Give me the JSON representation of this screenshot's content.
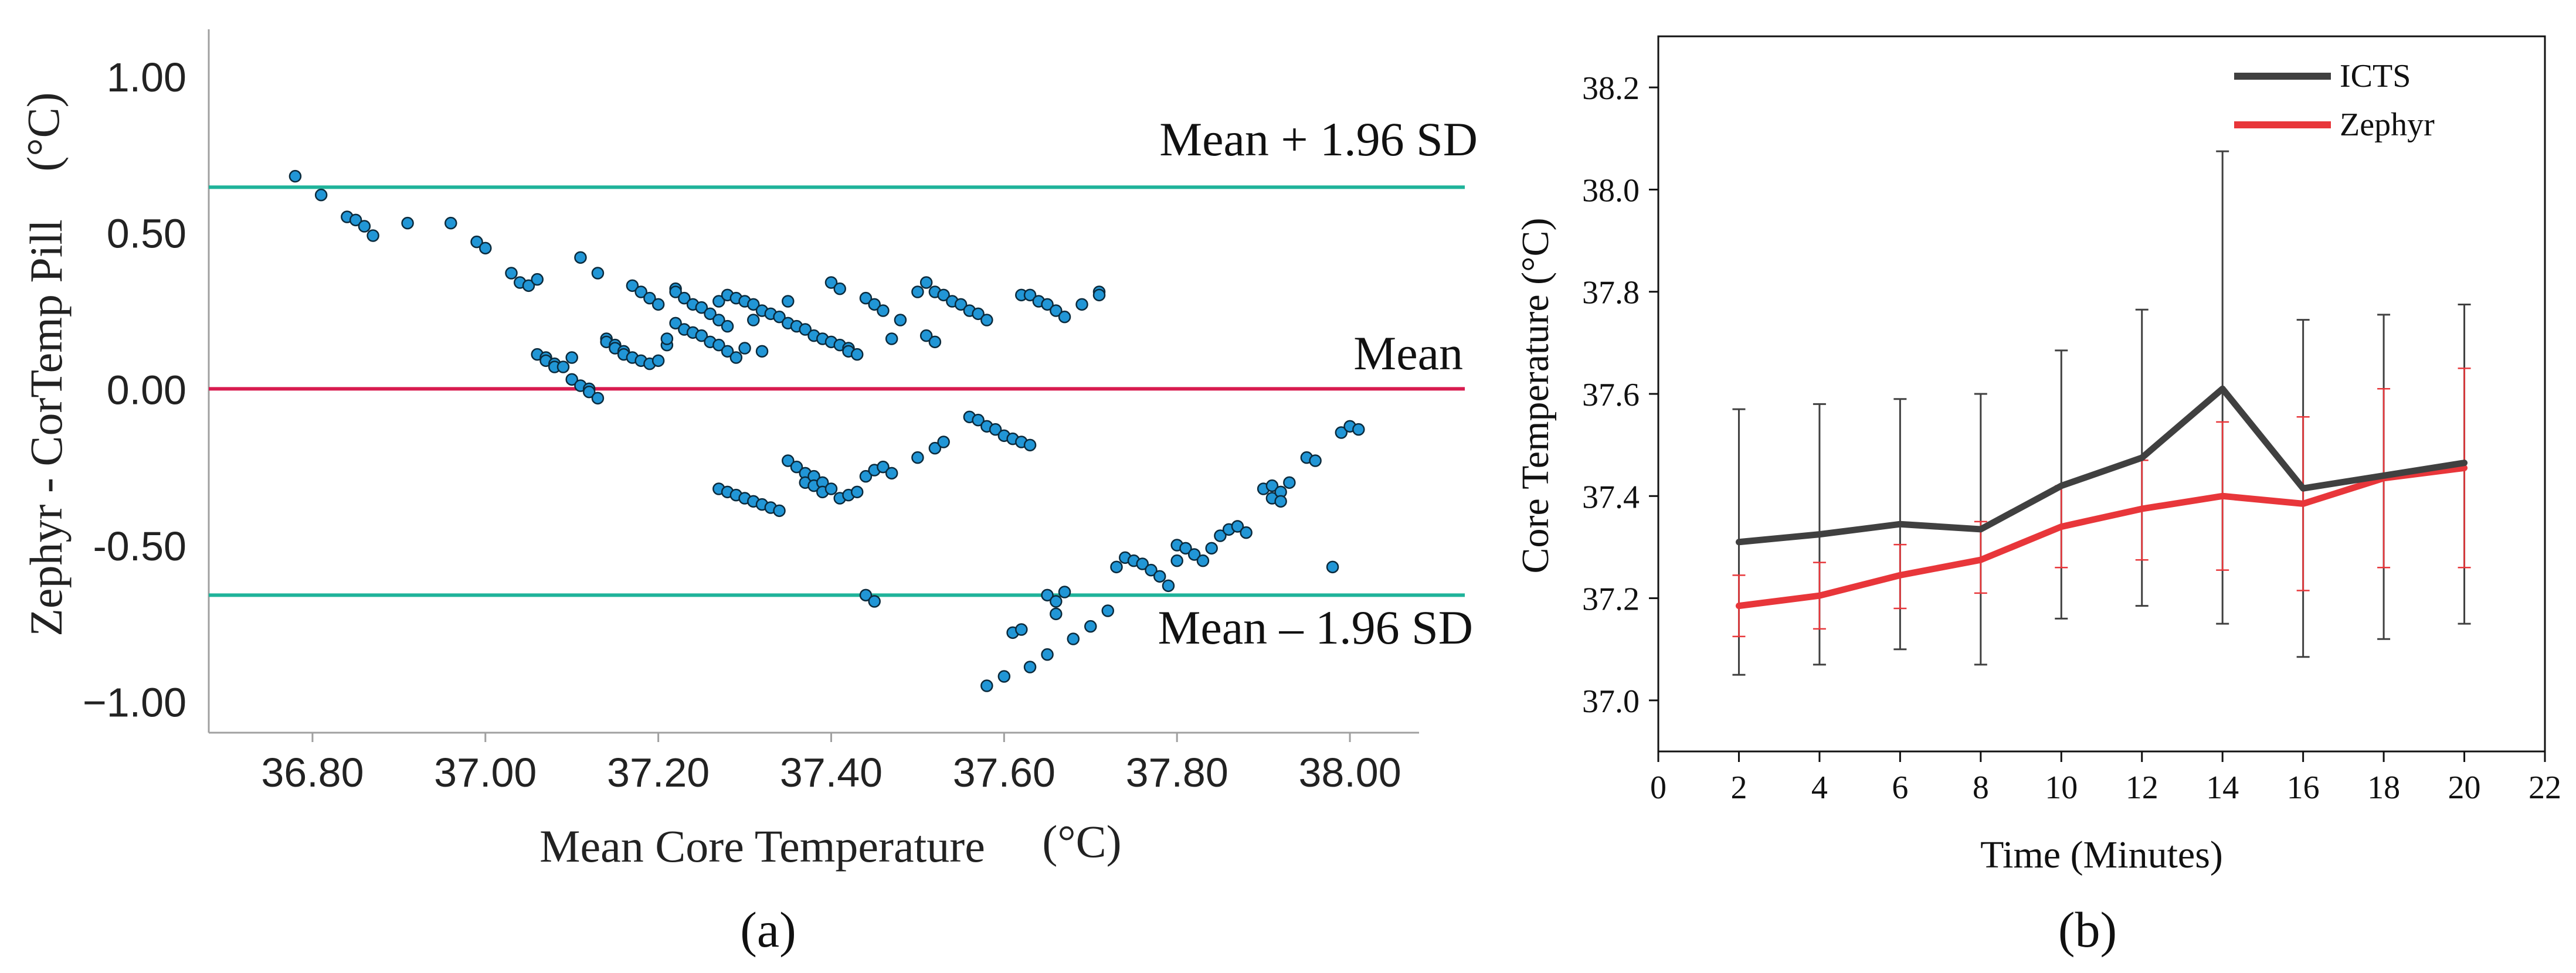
{
  "panel_labels": {
    "a": "(a)",
    "b": "(b)"
  },
  "chart_data": [
    {
      "type": "scatter",
      "title": "",
      "xlabel": "Mean Core Temperature",
      "xlabel_unit": "(°C)",
      "ylabel": "Zephyr - CorTemp Pill",
      "ylabel_unit": "(°C)",
      "xlim": [
        36.68,
        38.08
      ],
      "ylim": [
        -1.1,
        1.15
      ],
      "xticks": [
        36.8,
        37.0,
        37.2,
        37.4,
        37.6,
        37.8,
        38.0
      ],
      "xtick_labels": [
        "36.80",
        "37.00",
        "37.20",
        "37.40",
        "37.60",
        "37.80",
        "38.00"
      ],
      "yticks": [
        1.0,
        0.5,
        0.0,
        -0.5,
        -1.0
      ],
      "ytick_labels": [
        "1.00",
        "0.50",
        "0.00",
        "-0.50",
        "−1.00"
      ],
      "reference_lines": [
        {
          "name": "Mean + 1.96 SD",
          "value": 0.645,
          "color": "#1fb39a"
        },
        {
          "name": "Mean",
          "value": 0.0,
          "color": "#d81b4f"
        },
        {
          "name": "Mean – 1.96 SD",
          "value": -0.66,
          "color": "#1fb39a"
        }
      ],
      "marker_color": "#2196d6",
      "points": [
        [
          36.78,
          0.68
        ],
        [
          36.81,
          0.62
        ],
        [
          36.84,
          0.55
        ],
        [
          36.85,
          0.54
        ],
        [
          36.86,
          0.52
        ],
        [
          36.87,
          0.49
        ],
        [
          36.91,
          0.53
        ],
        [
          36.96,
          0.53
        ],
        [
          36.99,
          0.47
        ],
        [
          37.0,
          0.45
        ],
        [
          37.03,
          0.37
        ],
        [
          37.04,
          0.34
        ],
        [
          37.05,
          0.33
        ],
        [
          37.06,
          0.35
        ],
        [
          37.06,
          0.11
        ],
        [
          37.07,
          0.1
        ],
        [
          37.07,
          0.09
        ],
        [
          37.08,
          0.08
        ],
        [
          37.08,
          0.07
        ],
        [
          37.09,
          0.07
        ],
        [
          37.1,
          0.1
        ],
        [
          37.1,
          0.03
        ],
        [
          37.11,
          0.42
        ],
        [
          37.11,
          0.01
        ],
        [
          37.12,
          0.0
        ],
        [
          37.12,
          -0.01
        ],
        [
          37.13,
          -0.03
        ],
        [
          37.13,
          0.37
        ],
        [
          37.14,
          0.16
        ],
        [
          37.14,
          0.15
        ],
        [
          37.15,
          0.14
        ],
        [
          37.15,
          0.13
        ],
        [
          37.16,
          0.12
        ],
        [
          37.16,
          0.11
        ],
        [
          37.17,
          0.1
        ],
        [
          37.17,
          0.33
        ],
        [
          37.18,
          0.31
        ],
        [
          37.18,
          0.09
        ],
        [
          37.19,
          0.29
        ],
        [
          37.19,
          0.08
        ],
        [
          37.2,
          0.27
        ],
        [
          37.2,
          0.09
        ],
        [
          37.21,
          0.14
        ],
        [
          37.21,
          0.16
        ],
        [
          37.22,
          0.32
        ],
        [
          37.22,
          0.31
        ],
        [
          37.22,
          0.21
        ],
        [
          37.23,
          0.29
        ],
        [
          37.23,
          0.19
        ],
        [
          37.24,
          0.27
        ],
        [
          37.24,
          0.18
        ],
        [
          37.25,
          0.26
        ],
        [
          37.25,
          0.17
        ],
        [
          37.26,
          0.24
        ],
        [
          37.26,
          0.15
        ],
        [
          37.27,
          0.22
        ],
        [
          37.27,
          0.14
        ],
        [
          37.27,
          0.28
        ],
        [
          37.28,
          0.2
        ],
        [
          37.28,
          0.12
        ],
        [
          37.28,
          0.3
        ],
        [
          37.29,
          0.29
        ],
        [
          37.29,
          0.1
        ],
        [
          37.3,
          0.28
        ],
        [
          37.3,
          0.13
        ],
        [
          37.31,
          0.27
        ],
        [
          37.31,
          0.22
        ],
        [
          37.32,
          0.25
        ],
        [
          37.32,
          0.12
        ],
        [
          37.33,
          0.24
        ],
        [
          37.34,
          0.23
        ],
        [
          37.35,
          0.21
        ],
        [
          37.35,
          0.28
        ],
        [
          37.36,
          0.2
        ],
        [
          37.37,
          0.19
        ],
        [
          37.38,
          0.17
        ],
        [
          37.39,
          0.16
        ],
        [
          37.4,
          0.15
        ],
        [
          37.4,
          0.34
        ],
        [
          37.41,
          0.32
        ],
        [
          37.41,
          0.14
        ],
        [
          37.42,
          0.13
        ],
        [
          37.42,
          0.12
        ],
        [
          37.43,
          0.11
        ],
        [
          37.44,
          0.29
        ],
        [
          37.45,
          0.27
        ],
        [
          37.46,
          0.25
        ],
        [
          37.47,
          0.16
        ],
        [
          37.48,
          0.22
        ],
        [
          37.5,
          0.31
        ],
        [
          37.51,
          0.34
        ],
        [
          37.51,
          0.17
        ],
        [
          37.52,
          0.31
        ],
        [
          37.52,
          0.15
        ],
        [
          37.53,
          0.3
        ],
        [
          37.54,
          0.28
        ],
        [
          37.55,
          0.27
        ],
        [
          37.56,
          0.25
        ],
        [
          37.57,
          0.24
        ],
        [
          37.58,
          0.22
        ],
        [
          37.62,
          0.3
        ],
        [
          37.63,
          0.3
        ],
        [
          37.64,
          0.28
        ],
        [
          37.65,
          0.27
        ],
        [
          37.66,
          0.25
        ],
        [
          37.67,
          0.23
        ],
        [
          37.69,
          0.27
        ],
        [
          37.71,
          0.31
        ],
        [
          37.71,
          0.3
        ],
        [
          37.27,
          -0.32
        ],
        [
          37.28,
          -0.33
        ],
        [
          37.29,
          -0.34
        ],
        [
          37.3,
          -0.35
        ],
        [
          37.31,
          -0.36
        ],
        [
          37.32,
          -0.37
        ],
        [
          37.33,
          -0.38
        ],
        [
          37.34,
          -0.39
        ],
        [
          37.35,
          -0.23
        ],
        [
          37.36,
          -0.25
        ],
        [
          37.37,
          -0.27
        ],
        [
          37.37,
          -0.3
        ],
        [
          37.38,
          -0.28
        ],
        [
          37.38,
          -0.31
        ],
        [
          37.39,
          -0.3
        ],
        [
          37.39,
          -0.33
        ],
        [
          37.4,
          -0.32
        ],
        [
          37.41,
          -0.35
        ],
        [
          37.42,
          -0.34
        ],
        [
          37.43,
          -0.33
        ],
        [
          37.44,
          -0.28
        ],
        [
          37.45,
          -0.26
        ],
        [
          37.46,
          -0.25
        ],
        [
          37.47,
          -0.27
        ],
        [
          37.5,
          -0.22
        ],
        [
          37.52,
          -0.19
        ],
        [
          37.53,
          -0.17
        ],
        [
          37.56,
          -0.09
        ],
        [
          37.57,
          -0.1
        ],
        [
          37.58,
          -0.12
        ],
        [
          37.59,
          -0.13
        ],
        [
          37.6,
          -0.15
        ],
        [
          37.61,
          -0.16
        ],
        [
          37.62,
          -0.17
        ],
        [
          37.63,
          -0.18
        ],
        [
          37.44,
          -0.66
        ],
        [
          37.45,
          -0.68
        ],
        [
          37.58,
          -0.95
        ],
        [
          37.6,
          -0.92
        ],
        [
          37.61,
          -0.78
        ],
        [
          37.62,
          -0.77
        ],
        [
          37.63,
          -0.89
        ],
        [
          37.65,
          -0.85
        ],
        [
          37.65,
          -0.66
        ],
        [
          37.66,
          -0.68
        ],
        [
          37.66,
          -0.72
        ],
        [
          37.67,
          -0.65
        ],
        [
          37.68,
          -0.8
        ],
        [
          37.7,
          -0.76
        ],
        [
          37.72,
          -0.71
        ],
        [
          37.73,
          -0.57
        ],
        [
          37.74,
          -0.54
        ],
        [
          37.75,
          -0.55
        ],
        [
          37.76,
          -0.56
        ],
        [
          37.77,
          -0.58
        ],
        [
          37.78,
          -0.6
        ],
        [
          37.79,
          -0.63
        ],
        [
          37.8,
          -0.55
        ],
        [
          37.8,
          -0.5
        ],
        [
          37.81,
          -0.51
        ],
        [
          37.82,
          -0.53
        ],
        [
          37.83,
          -0.55
        ],
        [
          37.84,
          -0.51
        ],
        [
          37.85,
          -0.47
        ],
        [
          37.86,
          -0.45
        ],
        [
          37.87,
          -0.44
        ],
        [
          37.88,
          -0.46
        ],
        [
          37.9,
          -0.32
        ],
        [
          37.91,
          -0.31
        ],
        [
          37.91,
          -0.35
        ],
        [
          37.92,
          -0.33
        ],
        [
          37.92,
          -0.36
        ],
        [
          37.93,
          -0.3
        ],
        [
          37.95,
          -0.22
        ],
        [
          37.96,
          -0.23
        ],
        [
          37.98,
          -0.57
        ],
        [
          37.99,
          -0.14
        ],
        [
          38.0,
          -0.12
        ],
        [
          38.01,
          -0.13
        ]
      ]
    },
    {
      "type": "line",
      "title": "",
      "xlabel": "Time (Minutes)",
      "ylabel": "Core Temperature (°C)",
      "xlim": [
        0,
        22
      ],
      "ylim": [
        36.9,
        38.3
      ],
      "xticks": [
        0,
        2,
        4,
        6,
        8,
        10,
        12,
        14,
        16,
        18,
        20,
        22
      ],
      "xtick_labels": [
        "0",
        "2",
        "4",
        "6",
        "8",
        "10",
        "12",
        "14",
        "16",
        "18",
        "20",
        "22"
      ],
      "yticks": [
        37.0,
        37.2,
        37.4,
        37.6,
        37.8,
        38.0,
        38.2
      ],
      "ytick_labels": [
        "37.0",
        "37.2",
        "37.4",
        "37.6",
        "37.8",
        "38.0",
        "38.2"
      ],
      "legend_position": "top-right",
      "x": [
        2,
        4,
        6,
        8,
        10,
        12,
        14,
        16,
        18,
        20
      ],
      "series": [
        {
          "name": "ICTS",
          "color": "#404040",
          "values": [
            37.31,
            37.325,
            37.345,
            37.335,
            37.42,
            37.475,
            37.61,
            37.415,
            37.44,
            37.465
          ],
          "err_upper": [
            37.57,
            37.58,
            37.59,
            37.6,
            37.685,
            37.765,
            38.075,
            37.745,
            37.755,
            37.775
          ],
          "err_lower": [
            37.05,
            37.07,
            37.1,
            37.07,
            37.16,
            37.185,
            37.15,
            37.085,
            37.12,
            37.15
          ]
        },
        {
          "name": "Zephyr",
          "color": "#e8363a",
          "values": [
            37.185,
            37.205,
            37.245,
            37.275,
            37.34,
            37.375,
            37.4,
            37.385,
            37.435,
            37.455
          ],
          "err_upper": [
            37.245,
            37.27,
            37.305,
            37.35,
            37.42,
            37.47,
            37.545,
            37.555,
            37.61,
            37.65
          ],
          "err_lower": [
            37.125,
            37.14,
            37.18,
            37.21,
            37.26,
            37.275,
            37.255,
            37.215,
            37.26,
            37.26
          ]
        }
      ]
    }
  ]
}
